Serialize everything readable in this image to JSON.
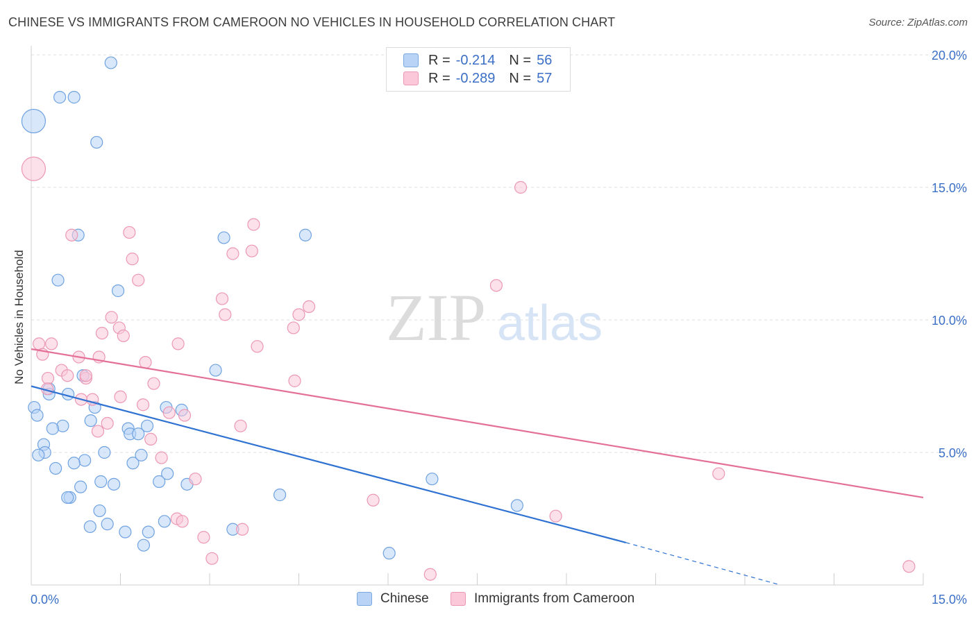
{
  "title": "CHINESE VS IMMIGRANTS FROM CAMEROON NO VEHICLES IN HOUSEHOLD CORRELATION CHART",
  "source": "Source: ZipAtlas.com",
  "watermark": {
    "zip": "ZIP",
    "atlas": "atlas"
  },
  "legend_top": [
    {
      "r_label": "R =",
      "r_value": "-0.214",
      "n_label": "N =",
      "n_value": "56",
      "color": "#a8c8f0"
    },
    {
      "r_label": "R =",
      "r_value": "-0.289",
      "n_label": "N =",
      "n_value": "57",
      "color": "#f7b8cc"
    }
  ],
  "bottom_legend": [
    {
      "label": "Chinese",
      "color": "#b8d3f5"
    },
    {
      "label": "Immigrants from Cameroon",
      "color": "#fac8d8"
    }
  ],
  "chart_data": {
    "type": "scatter",
    "title": "CHINESE VS IMMIGRANTS FROM CAMEROON NO VEHICLES IN HOUSEHOLD CORRELATION CHART",
    "xlabel": "",
    "ylabel": "No Vehicles in Household",
    "xlim": [
      0,
      15
    ],
    "ylim": [
      0,
      20
    ],
    "x_tick_labels": [
      "0.0%",
      "15.0%"
    ],
    "y_ticks": [
      5,
      10,
      15,
      20
    ],
    "y_tick_labels": [
      "5.0%",
      "10.0%",
      "15.0%",
      "20.0%"
    ],
    "grid": true,
    "legend_position": "top-center",
    "series": [
      {
        "name": "Chinese",
        "color": "#6fa2e0",
        "fill": "#b8d3f5",
        "line_color": "#2f72d2",
        "trend": {
          "x0": 0,
          "y0": 7.5,
          "x1": 10.0,
          "y1": 1.6,
          "dashed_to_x": 12.6,
          "dashed_to_y": 0.0
        },
        "points": [
          [
            1.34,
            19.7
          ],
          [
            0.48,
            18.4
          ],
          [
            0.72,
            18.4
          ],
          [
            0.04,
            17.5,
            "big"
          ],
          [
            1.1,
            16.7
          ],
          [
            0.79,
            13.2
          ],
          [
            3.24,
            13.1
          ],
          [
            4.61,
            13.2
          ],
          [
            0.45,
            11.5
          ],
          [
            1.46,
            11.1
          ],
          [
            3.1,
            8.1
          ],
          [
            0.87,
            7.9
          ],
          [
            0.3,
            7.4
          ],
          [
            0.62,
            7.2
          ],
          [
            0.3,
            7.2
          ],
          [
            0.05,
            6.7
          ],
          [
            0.1,
            6.4
          ],
          [
            1.07,
            6.7
          ],
          [
            2.27,
            6.7
          ],
          [
            2.53,
            6.6
          ],
          [
            0.53,
            6.0
          ],
          [
            1.0,
            6.2
          ],
          [
            1.63,
            5.9
          ],
          [
            1.95,
            6.0
          ],
          [
            0.36,
            5.9
          ],
          [
            1.66,
            5.7
          ],
          [
            1.8,
            5.7
          ],
          [
            0.21,
            5.3
          ],
          [
            0.23,
            5.0
          ],
          [
            0.12,
            4.9
          ],
          [
            1.23,
            5.0
          ],
          [
            0.9,
            4.7
          ],
          [
            0.72,
            4.6
          ],
          [
            1.71,
            4.6
          ],
          [
            1.85,
            4.9
          ],
          [
            0.41,
            4.4
          ],
          [
            2.29,
            4.2
          ],
          [
            1.17,
            3.9
          ],
          [
            1.39,
            3.8
          ],
          [
            2.15,
            3.9
          ],
          [
            2.62,
            3.8
          ],
          [
            0.83,
            3.7
          ],
          [
            6.74,
            4.0
          ],
          [
            4.18,
            3.4
          ],
          [
            0.65,
            3.3
          ],
          [
            0.61,
            3.3
          ],
          [
            1.15,
            2.8
          ],
          [
            8.17,
            3.0
          ],
          [
            2.24,
            2.4
          ],
          [
            0.99,
            2.2
          ],
          [
            1.28,
            2.3
          ],
          [
            3.39,
            2.1
          ],
          [
            1.58,
            2.0
          ],
          [
            1.97,
            2.0
          ],
          [
            1.89,
            1.5
          ],
          [
            6.02,
            1.2
          ]
        ]
      },
      {
        "name": "Immigrants from Cameroon",
        "color": "#ec97b4",
        "fill": "#fac8d8",
        "line_color": "#e46f98",
        "trend": {
          "x0": 0,
          "y0": 8.9,
          "x1": 15.0,
          "y1": 3.3
        },
        "points": [
          [
            0.04,
            15.7,
            "big"
          ],
          [
            8.23,
            15.0
          ],
          [
            3.74,
            13.6
          ],
          [
            1.65,
            13.3
          ],
          [
            0.68,
            13.2
          ],
          [
            3.39,
            12.5
          ],
          [
            3.71,
            12.6
          ],
          [
            1.7,
            12.3
          ],
          [
            1.8,
            11.5
          ],
          [
            7.82,
            11.3
          ],
          [
            3.21,
            10.8
          ],
          [
            4.67,
            10.5
          ],
          [
            4.5,
            10.2
          ],
          [
            3.26,
            10.2
          ],
          [
            1.35,
            10.1
          ],
          [
            1.48,
            9.7
          ],
          [
            4.41,
            9.7
          ],
          [
            1.19,
            9.5
          ],
          [
            1.55,
            9.4
          ],
          [
            0.13,
            9.1
          ],
          [
            0.34,
            9.1
          ],
          [
            2.47,
            9.1
          ],
          [
            3.8,
            9.0
          ],
          [
            0.19,
            8.7
          ],
          [
            0.8,
            8.6
          ],
          [
            1.14,
            8.6
          ],
          [
            1.92,
            8.4
          ],
          [
            0.51,
            8.1
          ],
          [
            0.61,
            7.9
          ],
          [
            0.92,
            7.8
          ],
          [
            0.28,
            7.8
          ],
          [
            4.43,
            7.7
          ],
          [
            2.06,
            7.6
          ],
          [
            0.27,
            7.4
          ],
          [
            0.84,
            7.0
          ],
          [
            1.5,
            7.1
          ],
          [
            1.03,
            7.0
          ],
          [
            1.88,
            6.8
          ],
          [
            2.32,
            6.5
          ],
          [
            2.58,
            6.4
          ],
          [
            1.28,
            6.1
          ],
          [
            3.52,
            6.0
          ],
          [
            1.12,
            5.8
          ],
          [
            2.01,
            5.5
          ],
          [
            2.19,
            4.8
          ],
          [
            11.56,
            4.2
          ],
          [
            2.76,
            4.0
          ],
          [
            5.75,
            3.2
          ],
          [
            8.82,
            2.6
          ],
          [
            2.45,
            2.5
          ],
          [
            2.54,
            2.4
          ],
          [
            3.55,
            2.1
          ],
          [
            2.9,
            1.8
          ],
          [
            3.04,
            1.0
          ],
          [
            6.71,
            0.4
          ],
          [
            14.76,
            0.7
          ],
          [
            0.92,
            7.9
          ]
        ]
      }
    ]
  }
}
